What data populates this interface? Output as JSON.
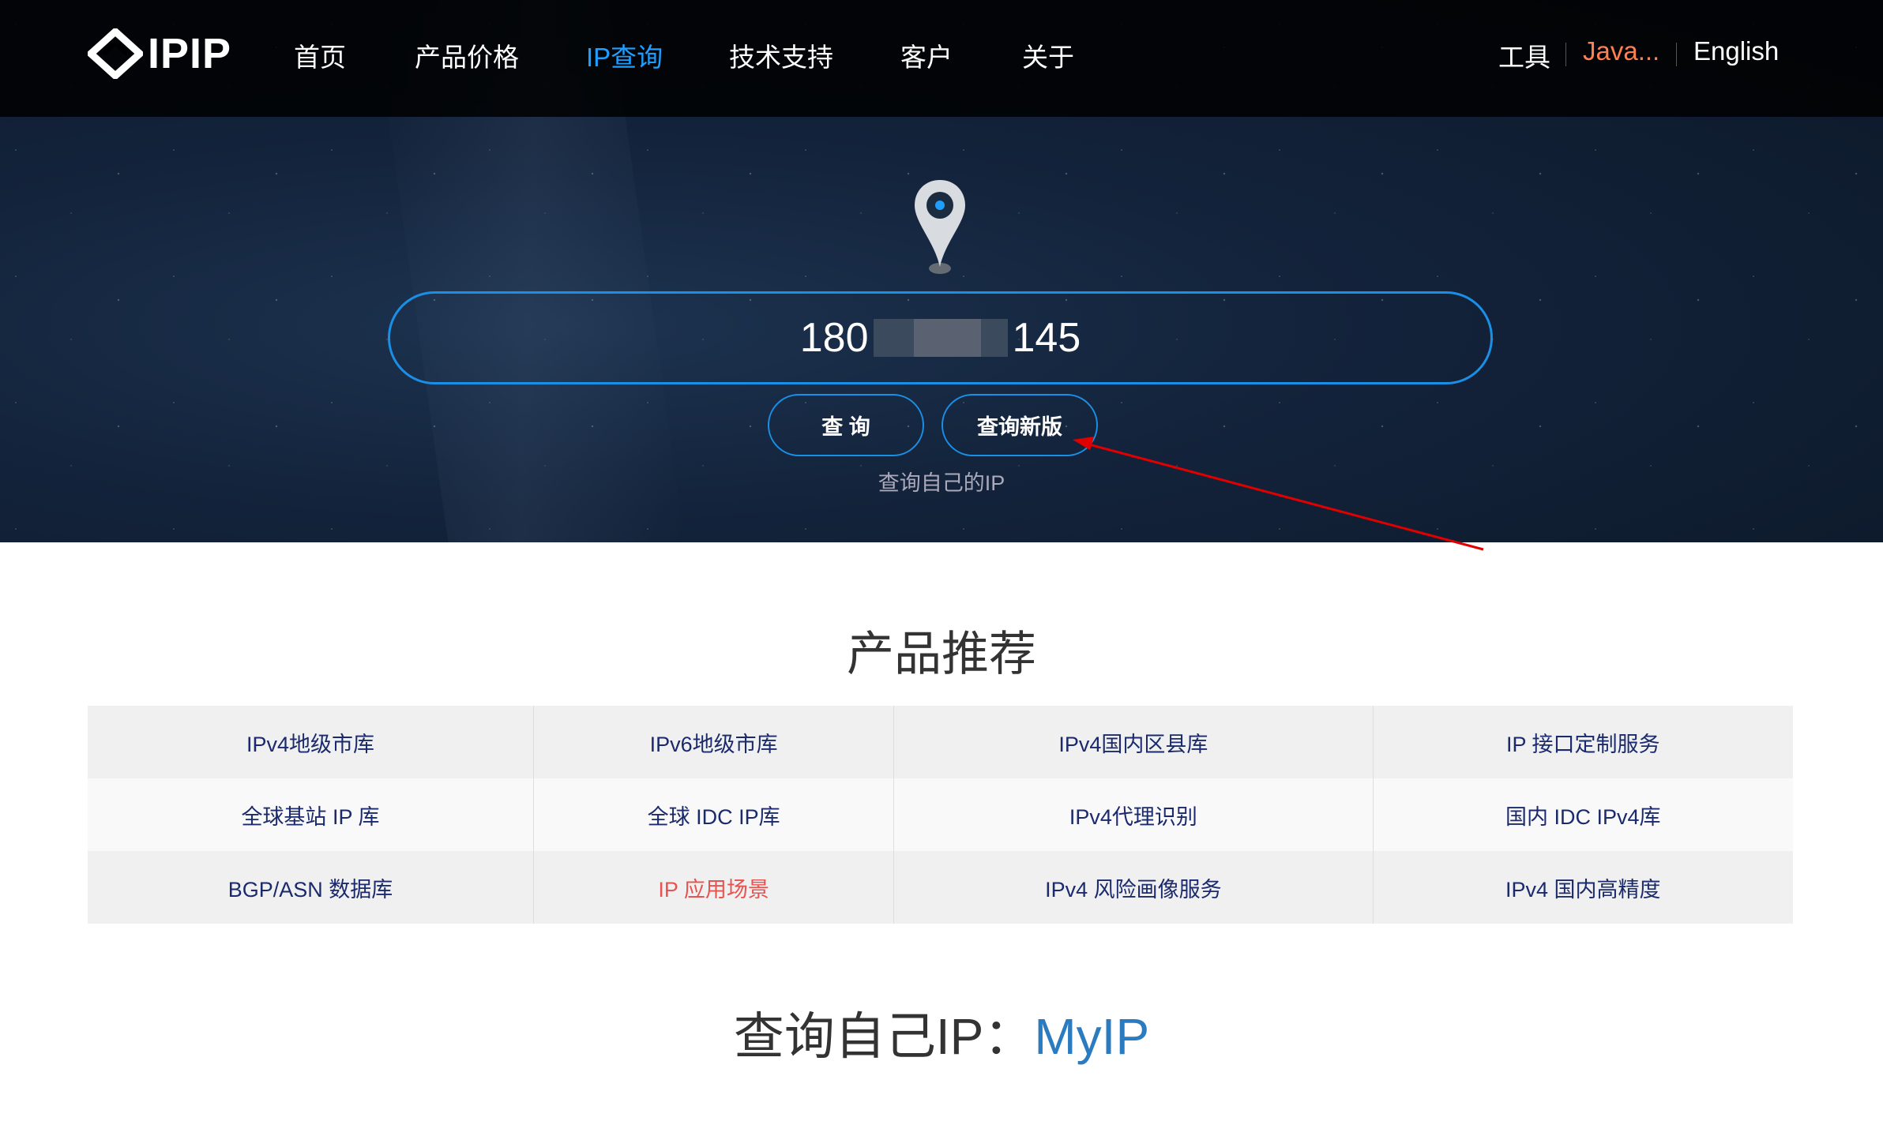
{
  "nav": {
    "logo": "IPIP",
    "items": [
      "首页",
      "产品价格",
      "IP查询",
      "技术支持",
      "客户",
      "关于"
    ],
    "active": "IP查询",
    "right": {
      "tools": "工具",
      "user": "Java...",
      "lang": "English"
    }
  },
  "search": {
    "value_prefix": "180",
    "value_suffix": "145",
    "query_button": "查 询",
    "new_button": "查询新版",
    "my_ip_link": "查询自己的IP"
  },
  "products": {
    "title": "产品推荐",
    "rows": [
      [
        "IPv4地级市库",
        "IPv6地级市库",
        "IPv4国内区县库",
        "IP 接口定制服务"
      ],
      [
        "全球基站 IP 库",
        "全球 IDC IP库",
        "IPv4代理识别",
        "国内 IDC IPv4库"
      ],
      [
        "BGP/ASN 数据库",
        "IP 应用场景",
        "IPv4 风险画像服务",
        "IPv4 国内高精度"
      ]
    ],
    "highlighted": "IP 应用场景"
  },
  "myip": {
    "label": "查询自己IP：",
    "link": "MyIP"
  },
  "colors": {
    "accent": "#1e9fff",
    "user": "#ff7f50",
    "table_text": "#1a2a6c",
    "highlight": "#e8524f",
    "annotation_arrow": "#e00000"
  }
}
